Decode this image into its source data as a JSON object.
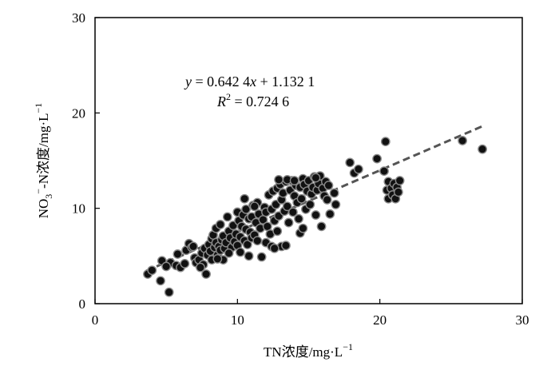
{
  "chart_data": {
    "type": "scatter",
    "title": "",
    "xlabel": "TN浓度/mg·L",
    "xlabel_sup": "−1",
    "ylabel_pre": "NO",
    "ylabel_sub": "3",
    "ylabel_sup": "−",
    "ylabel_post": "-N浓度/mg·L",
    "ylabel_sup2": "−1",
    "xlim": [
      0,
      30
    ],
    "ylim": [
      0,
      30
    ],
    "xticks": [
      "0",
      "10",
      "20",
      "30"
    ],
    "yticks": [
      "0",
      "10",
      "20",
      "30"
    ],
    "grid": false,
    "marker_color": "#111111",
    "marker_edge": "#8a8a8a",
    "trendline": {
      "equation_y": "y",
      "equation_rest": " = 0.642 4",
      "equation_x": "x",
      "equation_tail": " + 1.132 1",
      "r2_R": "R",
      "r2_sup": "2",
      "r2_tail": " = 0.724 6",
      "slope": 0.6424,
      "intercept": 1.1321,
      "x_range": [
        3.6,
        27.3
      ],
      "color": "#555555",
      "style": "dashed"
    },
    "points": [
      [
        3.7,
        3.1
      ],
      [
        4.0,
        3.5
      ],
      [
        4.6,
        2.4
      ],
      [
        4.7,
        4.5
      ],
      [
        5.2,
        1.2
      ],
      [
        5.3,
        4.3
      ],
      [
        5.7,
        4.0
      ],
      [
        5.8,
        5.2
      ],
      [
        6.0,
        3.8
      ],
      [
        6.3,
        4.2
      ],
      [
        6.4,
        5.6
      ],
      [
        6.6,
        6.3
      ],
      [
        6.8,
        5.9
      ],
      [
        7.0,
        4.8
      ],
      [
        7.1,
        4.3
      ],
      [
        7.3,
        4.6
      ],
      [
        7.5,
        5.3
      ],
      [
        7.6,
        4.1
      ],
      [
        7.7,
        5.8
      ],
      [
        7.8,
        3.1
      ],
      [
        7.9,
        5.1
      ],
      [
        8.0,
        6.2
      ],
      [
        8.1,
        5.5
      ],
      [
        8.2,
        6.8
      ],
      [
        8.2,
        4.6
      ],
      [
        8.3,
        7.2
      ],
      [
        8.4,
        5.9
      ],
      [
        8.5,
        6.4
      ],
      [
        8.5,
        7.9
      ],
      [
        8.6,
        5.1
      ],
      [
        8.7,
        6.0
      ],
      [
        8.8,
        8.3
      ],
      [
        8.8,
        5.6
      ],
      [
        8.9,
        6.7
      ],
      [
        9.0,
        7.1
      ],
      [
        9.0,
        4.6
      ],
      [
        9.1,
        5.8
      ],
      [
        9.2,
        6.4
      ],
      [
        9.3,
        9.1
      ],
      [
        9.4,
        7.6
      ],
      [
        9.5,
        6.9
      ],
      [
        9.6,
        5.9
      ],
      [
        9.7,
        8.2
      ],
      [
        9.8,
        6.5
      ],
      [
        9.9,
        7.3
      ],
      [
        10.0,
        9.6
      ],
      [
        10.0,
        6.1
      ],
      [
        10.1,
        8.7
      ],
      [
        10.2,
        7.0
      ],
      [
        10.2,
        5.4
      ],
      [
        10.3,
        8.1
      ],
      [
        10.4,
        9.3
      ],
      [
        10.5,
        6.6
      ],
      [
        10.6,
        7.8
      ],
      [
        10.6,
        9.9
      ],
      [
        10.7,
        6.2
      ],
      [
        10.8,
        8.9
      ],
      [
        10.8,
        5.0
      ],
      [
        10.9,
        7.5
      ],
      [
        11.0,
        9.1
      ],
      [
        11.0,
        6.9
      ],
      [
        11.1,
        10.3
      ],
      [
        11.2,
        7.2
      ],
      [
        11.3,
        8.5
      ],
      [
        11.4,
        10.6
      ],
      [
        11.4,
        6.6
      ],
      [
        11.5,
        9.4
      ],
      [
        11.6,
        7.9
      ],
      [
        11.7,
        4.9
      ],
      [
        11.8,
        8.8
      ],
      [
        11.9,
        10.1
      ],
      [
        12.0,
        6.4
      ],
      [
        12.0,
        9.6
      ],
      [
        12.1,
        8.1
      ],
      [
        12.2,
        11.4
      ],
      [
        12.3,
        7.3
      ],
      [
        12.4,
        9.9
      ],
      [
        12.4,
        6.0
      ],
      [
        12.5,
        11.8
      ],
      [
        12.6,
        8.7
      ],
      [
        12.7,
        10.4
      ],
      [
        12.8,
        12.1
      ],
      [
        12.8,
        7.6
      ],
      [
        12.9,
        9.2
      ],
      [
        13.0,
        12.5
      ],
      [
        13.1,
        10.9
      ],
      [
        13.1,
        6.0
      ],
      [
        13.2,
        11.6
      ],
      [
        13.3,
        9.7
      ],
      [
        13.4,
        12.8
      ],
      [
        13.5,
        10.2
      ],
      [
        13.6,
        8.5
      ],
      [
        13.7,
        11.9
      ],
      [
        13.8,
        12.9
      ],
      [
        13.9,
        9.6
      ],
      [
        14.0,
        11.3
      ],
      [
        14.1,
        12.4
      ],
      [
        14.2,
        10.6
      ],
      [
        14.3,
        8.9
      ],
      [
        14.4,
        12.2
      ],
      [
        14.4,
        7.4
      ],
      [
        14.5,
        11.0
      ],
      [
        14.6,
        13.1
      ],
      [
        14.7,
        12.5
      ],
      [
        14.8,
        9.9
      ],
      [
        14.9,
        11.8
      ],
      [
        15.0,
        12.9
      ],
      [
        15.1,
        10.4
      ],
      [
        15.2,
        11.5
      ],
      [
        15.3,
        12.2
      ],
      [
        15.4,
        13.3
      ],
      [
        15.5,
        9.3
      ],
      [
        15.6,
        11.9
      ],
      [
        15.7,
        12.6
      ],
      [
        15.8,
        13.4
      ],
      [
        15.9,
        8.1
      ],
      [
        16.0,
        12.1
      ],
      [
        16.1,
        11.3
      ],
      [
        16.2,
        12.8
      ],
      [
        16.3,
        10.9
      ],
      [
        16.4,
        12.4
      ],
      [
        16.5,
        9.4
      ],
      [
        16.8,
        11.6
      ],
      [
        16.9,
        10.4
      ],
      [
        17.9,
        14.8
      ],
      [
        18.2,
        13.7
      ],
      [
        18.5,
        14.1
      ],
      [
        19.8,
        15.2
      ],
      [
        20.3,
        13.9
      ],
      [
        20.4,
        17.0
      ],
      [
        20.5,
        11.9
      ],
      [
        20.6,
        11.0
      ],
      [
        20.6,
        12.8
      ],
      [
        20.8,
        12.1
      ],
      [
        20.9,
        11.4
      ],
      [
        21.0,
        12.6
      ],
      [
        21.1,
        11.0
      ],
      [
        21.2,
        12.2
      ],
      [
        21.3,
        11.7
      ],
      [
        21.4,
        12.9
      ],
      [
        25.8,
        17.1
      ],
      [
        27.2,
        16.2
      ],
      [
        5.0,
        3.9
      ],
      [
        6.9,
        6.0
      ],
      [
        9.4,
        5.3
      ],
      [
        10.5,
        11.0
      ],
      [
        12.6,
        5.8
      ],
      [
        13.4,
        6.1
      ],
      [
        14.6,
        7.9
      ],
      [
        15.5,
        13.2
      ],
      [
        11.2,
        10.2
      ],
      [
        12.9,
        13.0
      ],
      [
        13.5,
        13.0
      ],
      [
        14.0,
        12.9
      ],
      [
        7.4,
        3.8
      ],
      [
        8.6,
        4.7
      ]
    ]
  }
}
